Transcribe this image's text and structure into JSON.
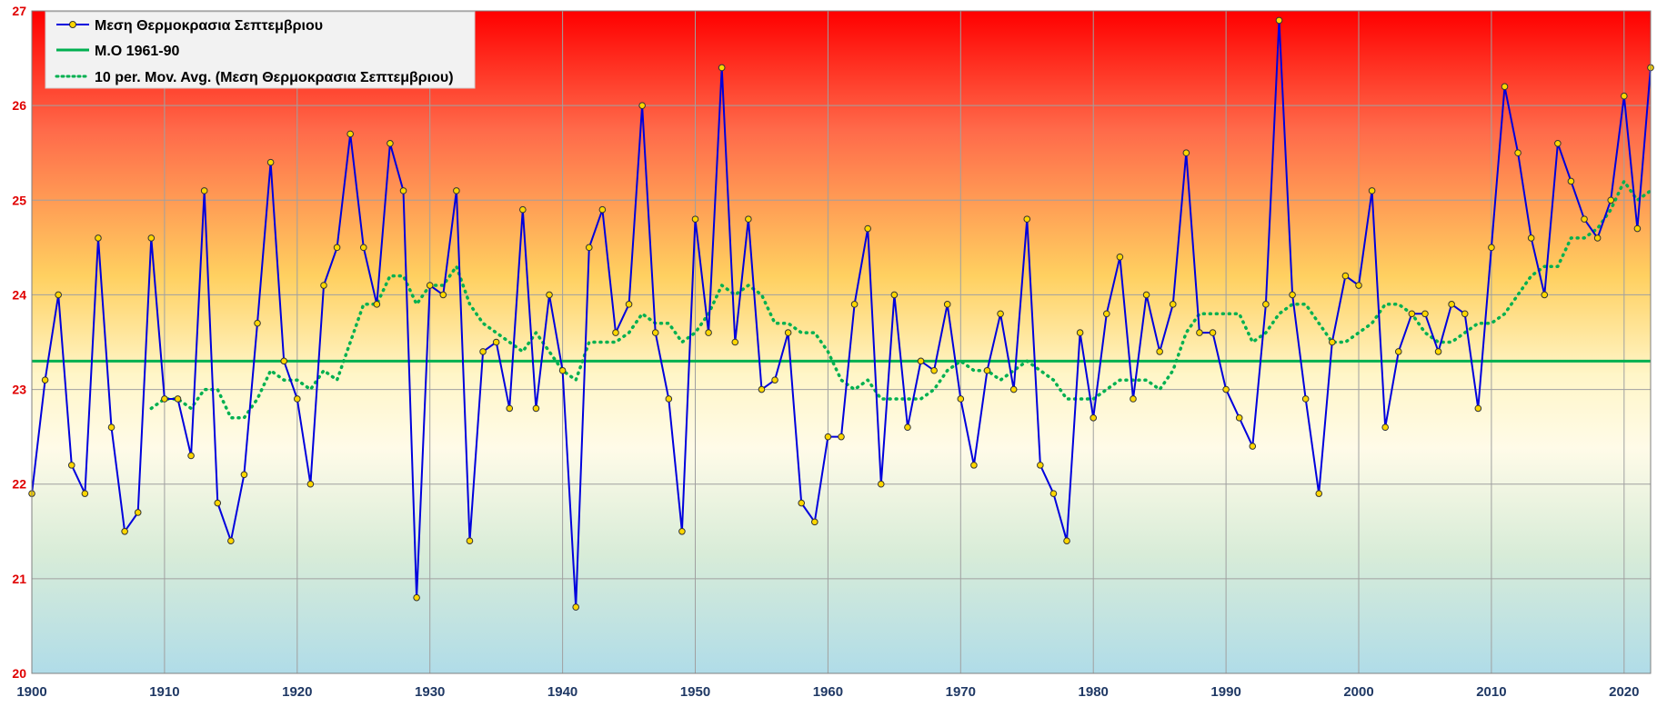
{
  "chart_data": {
    "type": "line",
    "ylim": [
      20,
      27
    ],
    "xlim": [
      1900,
      2022
    ],
    "yticks": [
      20,
      21,
      22,
      23,
      24,
      25,
      26,
      27
    ],
    "xticks": [
      1900,
      1910,
      1920,
      1930,
      1940,
      1950,
      1960,
      1970,
      1980,
      1990,
      2000,
      2010,
      2020
    ],
    "grid": true,
    "legend_position": "top-left",
    "background_gradient": [
      "#ff0000",
      "#ff6a4a",
      "#ffd060",
      "#fff6c8",
      "#fffbe8",
      "#d8ecd8",
      "#b0dce8"
    ],
    "colors": {
      "series": "#0000dd",
      "marker_fill": "#ffd700",
      "marker_stroke": "#333333",
      "baseline": "#00b050",
      "moving_avg": "#00b050",
      "grid": "#a0a0a0",
      "ytick": "#e00000",
      "xtick": "#1f3864"
    },
    "series": [
      {
        "name": "Μεση Θερμοκρασια Σεπτεμβριου",
        "x": [
          1900,
          1901,
          1902,
          1903,
          1904,
          1905,
          1906,
          1907,
          1908,
          1909,
          1910,
          1911,
          1912,
          1913,
          1914,
          1915,
          1916,
          1917,
          1918,
          1919,
          1920,
          1921,
          1922,
          1923,
          1924,
          1925,
          1926,
          1927,
          1928,
          1929,
          1930,
          1931,
          1932,
          1933,
          1934,
          1935,
          1936,
          1937,
          1938,
          1939,
          1940,
          1941,
          1942,
          1943,
          1944,
          1945,
          1946,
          1947,
          1948,
          1949,
          1950,
          1951,
          1952,
          1953,
          1954,
          1955,
          1956,
          1957,
          1958,
          1959,
          1960,
          1961,
          1962,
          1963,
          1964,
          1965,
          1966,
          1967,
          1968,
          1969,
          1970,
          1971,
          1972,
          1973,
          1974,
          1975,
          1976,
          1977,
          1978,
          1979,
          1980,
          1981,
          1982,
          1983,
          1984,
          1985,
          1986,
          1987,
          1988,
          1989,
          1990,
          1991,
          1992,
          1993,
          1994,
          1995,
          1996,
          1997,
          1998,
          1999,
          2000,
          2001,
          2002,
          2003,
          2004,
          2005,
          2006,
          2007,
          2008,
          2009,
          2010,
          2011,
          2012,
          2013,
          2014,
          2015,
          2016,
          2017,
          2018,
          2019,
          2020,
          2021,
          2022
        ],
        "values": [
          21.9,
          23.1,
          24.0,
          22.2,
          21.9,
          24.6,
          22.6,
          21.5,
          21.7,
          24.6,
          22.9,
          22.9,
          22.3,
          25.1,
          21.8,
          21.4,
          22.1,
          23.7,
          25.4,
          23.3,
          22.9,
          22.0,
          24.1,
          24.5,
          25.7,
          24.5,
          23.9,
          25.6,
          25.1,
          20.8,
          24.1,
          24.0,
          25.1,
          21.4,
          23.4,
          23.5,
          22.8,
          24.9,
          22.8,
          24.0,
          23.2,
          20.7,
          24.5,
          24.9,
          23.6,
          23.9,
          26.0,
          23.6,
          22.9,
          21.5,
          24.8,
          23.6,
          26.4,
          23.5,
          24.8,
          23.0,
          23.1,
          23.6,
          21.8,
          21.6,
          22.5,
          22.5,
          23.9,
          24.7,
          22.0,
          24.0,
          22.6,
          23.3,
          23.2,
          23.9,
          22.9,
          22.2,
          23.2,
          23.8,
          23.0,
          24.8,
          22.2,
          21.9,
          21.4,
          23.6,
          22.7,
          23.8,
          24.4,
          22.9,
          24.0,
          23.4,
          23.9,
          25.5,
          23.6,
          23.6,
          23.0,
          22.7,
          22.4,
          23.9,
          26.9,
          24.0,
          22.9,
          21.9,
          23.5,
          24.2,
          24.1,
          25.1,
          22.6,
          23.4,
          23.8,
          23.8,
          23.4,
          23.9,
          23.8,
          22.8,
          24.5,
          26.2,
          25.5,
          24.6,
          24.0,
          25.6,
          25.2,
          24.8,
          24.6,
          25.0,
          26.1,
          24.7,
          26.4
        ]
      },
      {
        "name": "Μ.Ο 1961-90",
        "x": [
          1900,
          2022
        ],
        "values": [
          23.3,
          23.3
        ]
      },
      {
        "name": "10 per. Mov. Avg. (Μεση Θερμοκρασια Σεπτεμβριου)",
        "x": [
          1909,
          1910,
          1911,
          1912,
          1913,
          1914,
          1915,
          1916,
          1917,
          1918,
          1919,
          1920,
          1921,
          1922,
          1923,
          1924,
          1925,
          1926,
          1927,
          1928,
          1929,
          1930,
          1931,
          1932,
          1933,
          1934,
          1935,
          1936,
          1937,
          1938,
          1939,
          1940,
          1941,
          1942,
          1943,
          1944,
          1945,
          1946,
          1947,
          1948,
          1949,
          1950,
          1951,
          1952,
          1953,
          1954,
          1955,
          1956,
          1957,
          1958,
          1959,
          1960,
          1961,
          1962,
          1963,
          1964,
          1965,
          1966,
          1967,
          1968,
          1969,
          1970,
          1971,
          1972,
          1973,
          1974,
          1975,
          1976,
          1977,
          1978,
          1979,
          1980,
          1981,
          1982,
          1983,
          1984,
          1985,
          1986,
          1987,
          1988,
          1989,
          1990,
          1991,
          1992,
          1993,
          1994,
          1995,
          1996,
          1997,
          1998,
          1999,
          2000,
          2001,
          2002,
          2003,
          2004,
          2005,
          2006,
          2007,
          2008,
          2009,
          2010,
          2011,
          2012,
          2013,
          2014,
          2015,
          2016,
          2017,
          2018,
          2019,
          2020,
          2021,
          2022
        ],
        "values": [
          22.8,
          22.9,
          22.9,
          22.8,
          23.0,
          23.0,
          22.7,
          22.7,
          22.9,
          23.2,
          23.1,
          23.1,
          23.0,
          23.2,
          23.1,
          23.5,
          23.9,
          23.9,
          24.2,
          24.2,
          23.9,
          24.1,
          24.1,
          24.3,
          23.9,
          23.7,
          23.6,
          23.5,
          23.4,
          23.6,
          23.4,
          23.2,
          23.1,
          23.5,
          23.5,
          23.5,
          23.6,
          23.8,
          23.7,
          23.7,
          23.5,
          23.6,
          23.8,
          24.1,
          24.0,
          24.1,
          24.0,
          23.7,
          23.7,
          23.6,
          23.6,
          23.4,
          23.1,
          23.0,
          23.1,
          22.9,
          22.9,
          22.9,
          22.9,
          23.0,
          23.2,
          23.3,
          23.2,
          23.2,
          23.1,
          23.2,
          23.3,
          23.2,
          23.1,
          22.9,
          22.9,
          22.9,
          23.0,
          23.1,
          23.1,
          23.1,
          23.0,
          23.2,
          23.6,
          23.8,
          23.8,
          23.8,
          23.8,
          23.5,
          23.6,
          23.8,
          23.9,
          23.9,
          23.7,
          23.5,
          23.5,
          23.6,
          23.7,
          23.9,
          23.9,
          23.8,
          23.6,
          23.5,
          23.5,
          23.6,
          23.7,
          23.7,
          23.8,
          24.0,
          24.2,
          24.3,
          24.3,
          24.6,
          24.6,
          24.7,
          24.9,
          25.2,
          25.0,
          25.1
        ]
      }
    ]
  }
}
